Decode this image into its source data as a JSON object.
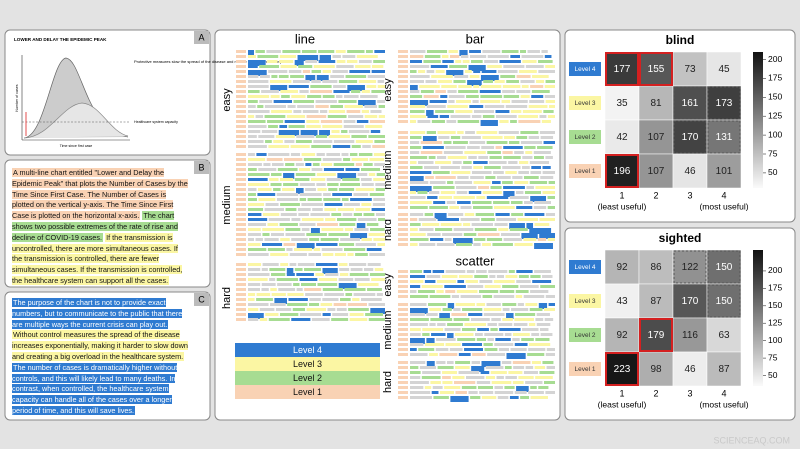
{
  "panel_a": {
    "label": "A",
    "title": "LOWER AND DELAY THE EPIDEMIC PEAK",
    "caption": "Protective measures slow the spread of the disease and reduce the burden on hospitals",
    "capacity": "Healthcare system capacity",
    "x_axis": "Time since first case",
    "y_axis": "Number of cases"
  },
  "panel_b": {
    "label": "B",
    "segments": [
      {
        "text": "A multi-line chart entitled \"Lower and Delay the Epidemic Peak\" that plots the Number of Cases by the Time Since First Case.  The Number of Cases is plotted on the vertical y-axis.  The Time Since First Case is plotted on the horizontal x-axis.",
        "color": "#f9d2b4"
      },
      {
        "text": "The chart shows two possible extremes of the rate of rise and decline of COVID-19 cases.",
        "color": "#a7dc92"
      },
      {
        "text": "If the transmission is uncontrolled, there are more simultaneous cases.  If the transmission is controlled, there are fewer simultaneous cases.  If the transmission is controlled, the healthcare system can support all the cases.",
        "color": "#fbf6a3"
      }
    ]
  },
  "panel_c": {
    "label": "C",
    "segments": [
      {
        "text": "The purpose of the chart is not to provide exact numbers, but to communicate to the public that there are multiple ways the current crisis can play out.",
        "color": "#2f7bd1"
      },
      {
        "text": "Without control measures the spread of the disease increases exponentially, making it harder to slow down and creating a big overload in the healthcare system.",
        "color": "#fbf6a3"
      },
      {
        "text": "The number of cases is dramatically higher without controls, and this will likely lead to many deaths. In contrast, when controlled, the healthcare system capacity can handle all of the cases over a longer period of time, and this will save lives.",
        "color": "#2f7bd1"
      }
    ]
  },
  "middle": {
    "columns": [
      "line",
      "bar",
      "scatter"
    ],
    "difficulties": [
      "easy",
      "medium",
      "hard"
    ],
    "legend": [
      {
        "name": "Level 4",
        "color": "#2f7bd1"
      },
      {
        "name": "Level 3",
        "color": "#fbf6a3"
      },
      {
        "name": "Level 2",
        "color": "#a7dc92"
      },
      {
        "name": "Level 1",
        "color": "#f9d2b4"
      }
    ]
  },
  "chart_data": [
    {
      "type": "heatmap",
      "title": "blind",
      "categories": [
        "1",
        "2",
        "3",
        "4"
      ],
      "x_notes": [
        "(least useful)",
        null,
        null,
        "(most useful)"
      ],
      "rows": [
        "Level 4",
        "Level 3",
        "Level 2",
        "Level 1"
      ],
      "row_colors": [
        "#2f7bd1",
        "#fbf6a3",
        "#a7dc92",
        "#f9d2b4"
      ],
      "values": [
        [
          177,
          155,
          73,
          45
        ],
        [
          35,
          81,
          161,
          173
        ],
        [
          42,
          107,
          170,
          131
        ],
        [
          196,
          107,
          46,
          101
        ]
      ],
      "highlight": [
        [
          0,
          0
        ],
        [
          0,
          1
        ],
        [
          3,
          0
        ]
      ],
      "dashed": [
        [
          1,
          2
        ],
        [
          1,
          3
        ],
        [
          2,
          2
        ],
        [
          2,
          3
        ]
      ],
      "zlim": [
        30,
        210
      ],
      "zticks": [
        50,
        75,
        100,
        125,
        150,
        175,
        200
      ]
    },
    {
      "type": "heatmap",
      "title": "sighted",
      "categories": [
        "1",
        "2",
        "3",
        "4"
      ],
      "x_notes": [
        "(least useful)",
        null,
        null,
        "(most useful)"
      ],
      "rows": [
        "Level 4",
        "Level 3",
        "Level 2",
        "Level 1"
      ],
      "row_colors": [
        "#2f7bd1",
        "#fbf6a3",
        "#a7dc92",
        "#f9d2b4"
      ],
      "values": [
        [
          92,
          86,
          122,
          150
        ],
        [
          43,
          87,
          170,
          150
        ],
        [
          92,
          179,
          116,
          63
        ],
        [
          223,
          98,
          46,
          87
        ]
      ],
      "highlight": [
        [
          2,
          1
        ],
        [
          3,
          0
        ]
      ],
      "dashed": [
        [
          0,
          2
        ],
        [
          0,
          3
        ],
        [
          1,
          2
        ],
        [
          1,
          3
        ]
      ],
      "zlim": [
        35,
        230
      ],
      "zticks": [
        50,
        75,
        100,
        125,
        150,
        175,
        200
      ]
    }
  ],
  "watermark": "SCIENCEAQ.COM"
}
